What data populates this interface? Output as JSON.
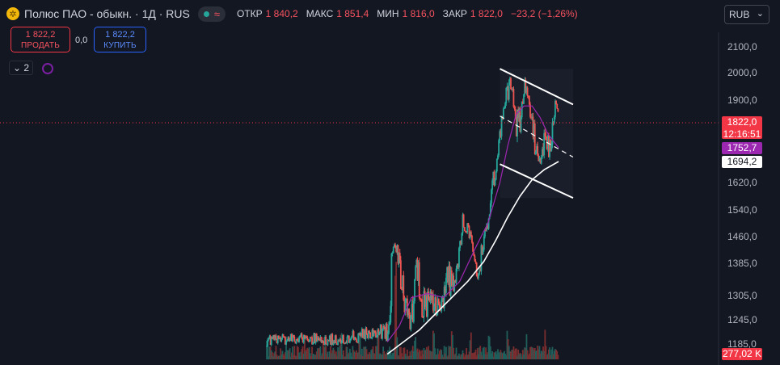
{
  "header": {
    "logo_icon": "polyus-logo-icon",
    "symbol": "Полюс ПАО - обыкн. · 1Д · RUS",
    "status_icons": [
      "market-open-dot-icon",
      "wave-icon"
    ],
    "ohlc": [
      {
        "key": "ОТКР",
        "value": "1 840,2"
      },
      {
        "key": "МАКС",
        "value": "1 851,4"
      },
      {
        "key": "МИН",
        "value": "1 816,0"
      },
      {
        "key": "ЗАКР",
        "value": "1 822,0"
      }
    ],
    "change": "−23,2 (−1,26%)"
  },
  "currency": {
    "label": "RUB",
    "icon": "chevron-down-icon"
  },
  "trade": {
    "sell_price": "1 822,2",
    "sell_label": "ПРОДАТЬ",
    "spread": "0,0",
    "buy_price": "1 822,2",
    "buy_label": "КУПИТЬ"
  },
  "indicators": {
    "collapse_label": "2",
    "collapse_icon": "chevron-down-icon",
    "indicator_icon": "indicator-circle-icon"
  },
  "price_labels": {
    "last_price": "1822,0",
    "countdown": "12:16:51",
    "ma_fast": "1752,7",
    "ma_slow": "1694,2",
    "volume": "277,02 K"
  },
  "colors": {
    "background": "#131722",
    "up": "#26a69a",
    "down": "#ef5350",
    "ma_fast": "#9c27b0",
    "ma_slow": "#ffffff",
    "channel": "#ffffff",
    "last_price": "#f23645",
    "volume_up": "#1f5e5a",
    "volume_down": "#7a2d2e"
  },
  "chart_data": {
    "type": "candlestick",
    "title": "Полюс ПАО - обыкн.",
    "timeframe": "1Д",
    "y_ticks": [
      2100,
      2000,
      1900,
      1620,
      1540,
      1460,
      1385,
      1305,
      1245,
      1185
    ],
    "y_tick_labels": [
      "2100,0",
      "2000,0",
      "1900,0",
      "1620,0",
      "1540,0",
      "1460,0",
      "1385,0",
      "1305,0",
      "1245,0",
      "1185,0"
    ],
    "price_scale_anchors": [
      [
        2100,
        58
      ],
      [
        2000,
        90
      ],
      [
        1900,
        124
      ],
      [
        1822,
        152
      ],
      [
        1752.7,
        183
      ],
      [
        1694.2,
        200
      ],
      [
        1620,
        226
      ],
      [
        1540,
        260
      ],
      [
        1460,
        293
      ],
      [
        1385,
        326
      ],
      [
        1305,
        366
      ],
      [
        1245,
        396
      ],
      [
        1185,
        426
      ]
    ],
    "last": {
      "open": 1840.2,
      "high": 1851.4,
      "low": 1816.0,
      "close": 1822.0,
      "change": -23.2,
      "change_pct": -1.26
    },
    "segments": [
      [
        0,
        1180,
        1205
      ],
      [
        40,
        1185,
        1215
      ],
      [
        80,
        1180,
        1210
      ],
      [
        120,
        1190,
        1225
      ],
      [
        140,
        1200,
        1230
      ],
      [
        150,
        1190,
        1255
      ],
      [
        154,
        1240,
        1400
      ],
      [
        158,
        1440,
        1470
      ],
      [
        162,
        1380,
        1450
      ],
      [
        168,
        1300,
        1400
      ],
      [
        173,
        1240,
        1320
      ],
      [
        177,
        1200,
        1280
      ],
      [
        182,
        1230,
        1370
      ],
      [
        186,
        1380,
        1420
      ],
      [
        190,
        1260,
        1390
      ],
      [
        196,
        1230,
        1320
      ],
      [
        202,
        1270,
        1330
      ],
      [
        208,
        1220,
        1300
      ],
      [
        214,
        1260,
        1320
      ],
      [
        218,
        1260,
        1350
      ],
      [
        225,
        1290,
        1380
      ],
      [
        230,
        1310,
        1380
      ],
      [
        236,
        1320,
        1380
      ],
      [
        240,
        1380,
        1470
      ],
      [
        244,
        1480,
        1540
      ],
      [
        248,
        1470,
        1510
      ],
      [
        253,
        1450,
        1480
      ],
      [
        258,
        1390,
        1440
      ],
      [
        263,
        1320,
        1390
      ],
      [
        268,
        1390,
        1460
      ],
      [
        272,
        1450,
        1500
      ],
      [
        277,
        1500,
        1540
      ],
      [
        282,
        1560,
        1680
      ],
      [
        287,
        1690,
        1760
      ],
      [
        292,
        1780,
        1860
      ],
      [
        296,
        1880,
        1990
      ],
      [
        300,
        1880,
        1980
      ],
      [
        304,
        1930,
        1990
      ],
      [
        308,
        1830,
        1900
      ],
      [
        312,
        1750,
        1870
      ],
      [
        316,
        1800,
        1940
      ],
      [
        320,
        1930,
        2010
      ],
      [
        324,
        1870,
        1940
      ],
      [
        328,
        1800,
        1870
      ],
      [
        332,
        1720,
        1840
      ],
      [
        336,
        1700,
        1780
      ],
      [
        340,
        1680,
        1760
      ],
      [
        344,
        1690,
        1830
      ],
      [
        348,
        1730,
        1800
      ],
      [
        352,
        1700,
        1780
      ],
      [
        356,
        1760,
        1880
      ],
      [
        360,
        1880,
        1910
      ],
      [
        363,
        1830,
        1860
      ]
    ],
    "ma_fast_points": [
      [
        150,
        1190
      ],
      [
        165,
        1230
      ],
      [
        180,
        1300
      ],
      [
        200,
        1310
      ],
      [
        220,
        1300
      ],
      [
        240,
        1340
      ],
      [
        260,
        1430
      ],
      [
        275,
        1500
      ],
      [
        290,
        1620
      ],
      [
        300,
        1760
      ],
      [
        310,
        1850
      ],
      [
        320,
        1880
      ],
      [
        330,
        1880
      ],
      [
        340,
        1840
      ],
      [
        350,
        1790
      ],
      [
        363,
        1752.7
      ]
    ],
    "ma_slow_points": [
      [
        150,
        1160
      ],
      [
        170,
        1190
      ],
      [
        190,
        1220
      ],
      [
        210,
        1260
      ],
      [
        230,
        1300
      ],
      [
        250,
        1340
      ],
      [
        270,
        1390
      ],
      [
        285,
        1450
      ],
      [
        300,
        1520
      ],
      [
        315,
        1580
      ],
      [
        330,
        1630
      ],
      [
        345,
        1665
      ],
      [
        363,
        1694.2
      ]
    ],
    "channel": {
      "upper": [
        [
          290,
          2015
        ],
        [
          381,
          1885
        ]
      ],
      "middle": [
        [
          290,
          1845
        ],
        [
          381,
          1713
        ]
      ],
      "lower": [
        [
          290,
          1685
        ],
        [
          381,
          1575
        ]
      ],
      "style": {
        "upper": "solid",
        "middle": "dashed",
        "lower": "solid"
      }
    },
    "volume_last": 277020,
    "index_max": 380
  }
}
